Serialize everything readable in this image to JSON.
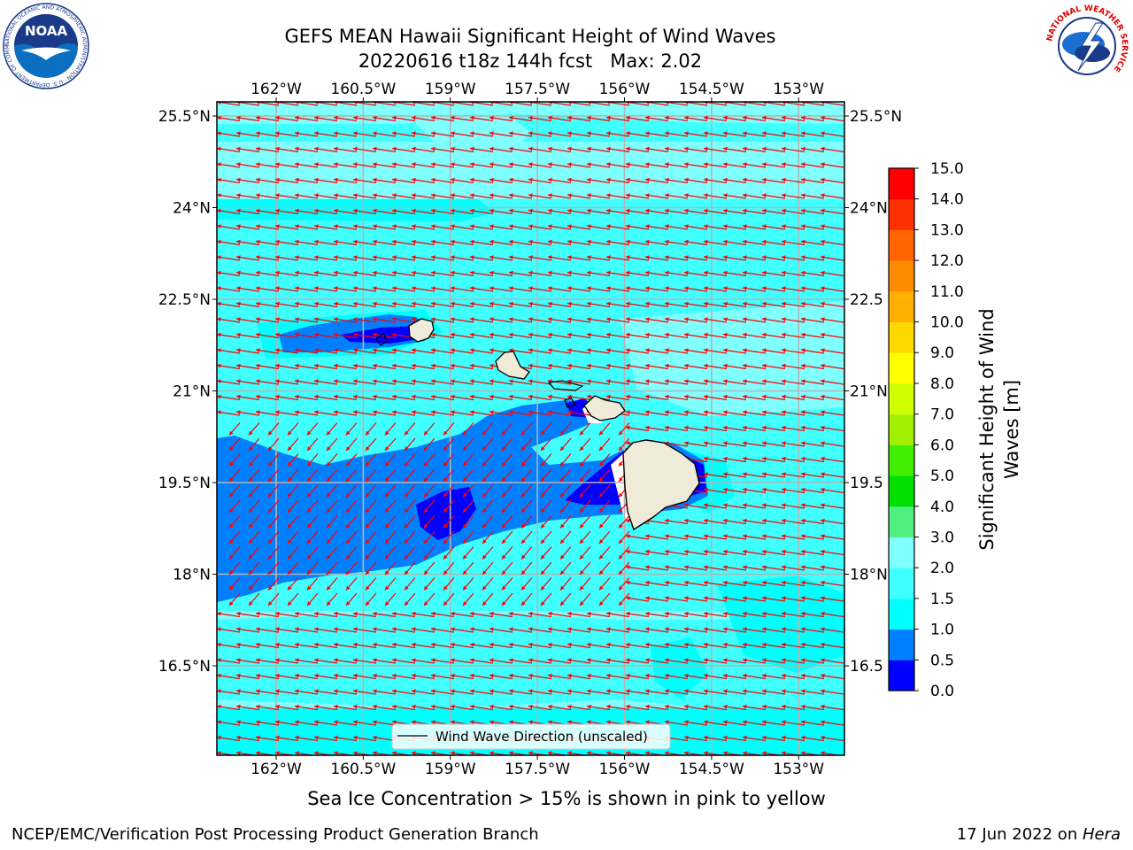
{
  "title": {
    "line1": "GEFS MEAN Hawaii Significant Height of Wind Waves",
    "line2": "20220616 t18z 144h fcst   Max: 2.02"
  },
  "map": {
    "lon_ticks": [
      "162°W",
      "160.5°W",
      "159°W",
      "157.5°W",
      "156°W",
      "154.5°W",
      "153°W"
    ],
    "lon_values": [
      -162,
      -160.5,
      -159,
      -157.5,
      -156,
      -154.5,
      -153
    ],
    "lat_ticks": [
      "25.5°N",
      "24°N",
      "22.5°N",
      "21°N",
      "19.5°N",
      "18°N",
      "16.5°N"
    ],
    "lat_values": [
      25.5,
      24,
      22.5,
      21,
      19.5,
      18,
      16.5
    ],
    "right_lat_ticks": [
      "25.5°N",
      "24°N",
      "22.5",
      "21°N",
      "19.5",
      "18°N",
      "16.5"
    ],
    "lon_range": [
      -163,
      -152.5
    ],
    "lat_range": [
      15.0,
      25.75
    ],
    "wave_direction": "toward west-southwest",
    "arrow_color": "#ff0000",
    "land_color": "#efebd8",
    "grid_color": "#b4b4b4"
  },
  "legend": {
    "label": "Wind Wave Direction (unscaled)"
  },
  "colorbar": {
    "title_line1": "Significant Height of Wind",
    "title_line2": "Waves [m]",
    "levels": [
      "0.0",
      "0.5",
      "1.0",
      "1.5",
      "2.0",
      "3.0",
      "4.0",
      "5.0",
      "6.0",
      "7.0",
      "8.0",
      "9.0",
      "10.0",
      "11.0",
      "12.0",
      "13.0",
      "14.0",
      "15.0"
    ],
    "colors": [
      "#0000ff",
      "#0080ff",
      "#00ffff",
      "#40ffff",
      "#80ffff",
      "#50f080",
      "#00e000",
      "#40f000",
      "#a0f000",
      "#d0ff00",
      "#ffff00",
      "#ffd800",
      "#ffb000",
      "#ff8c00",
      "#ff6400",
      "#ff3000",
      "#ff0000"
    ]
  },
  "footer": {
    "note": "Sea Ice Concentration > 15% is shown in pink to yellow",
    "left": "NCEP/EMC/Verification Post Processing Product Generation Branch",
    "right_date": "17 Jun 2022 on ",
    "right_host": "Hera"
  },
  "logos": {
    "noaa_text": "NOAA",
    "noaa_ring": "NATIONAL OCEANIC AND ATMOSPHERIC ADMINISTRATION · U.S. DEPARTMENT OF COMMERCE",
    "nws_ring": "NATIONAL WEATHER SERVICE"
  }
}
